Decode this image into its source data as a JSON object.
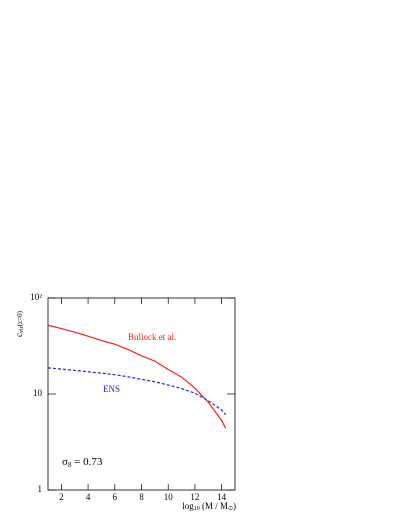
{
  "chart_data": {
    "type": "line",
    "y_label": {
      "main": "c",
      "sub": "vir",
      "rest": "(z=0)"
    },
    "x_label": {
      "main": "log",
      "sub": "10",
      "rest": " (M / M",
      "sub2": "⊙",
      "end": ")"
    },
    "x": [
      1,
      2,
      3,
      4,
      5,
      6,
      7,
      8,
      9,
      10,
      11,
      12,
      13,
      14,
      14.3
    ],
    "series": [
      {
        "name": "Bullock et al.",
        "color": "#ee2222",
        "dash": false,
        "values": [
          52,
          48,
          44,
          40,
          36,
          33,
          29,
          25,
          22,
          18,
          15,
          11.5,
          8.2,
          5.3,
          4.4
        ]
      },
      {
        "name": "ENS",
        "color": "#2222dd",
        "dash": true,
        "values": [
          18.7,
          18.2,
          17.6,
          17,
          16.5,
          15.9,
          15.1,
          14.2,
          13.4,
          12.4,
          11.4,
          10.2,
          8.5,
          6.8,
          6.1
        ]
      }
    ],
    "annotation": {
      "main": "σ",
      "sub": "8",
      "rest": " = 0.73"
    },
    "xlim": [
      1,
      15
    ],
    "xticks": [
      2,
      4,
      6,
      8,
      10,
      12,
      14
    ],
    "ylim": [
      1,
      100
    ],
    "yticks": [
      1,
      10,
      {
        "value": 100,
        "label": "10²"
      }
    ],
    "log_y": true
  }
}
